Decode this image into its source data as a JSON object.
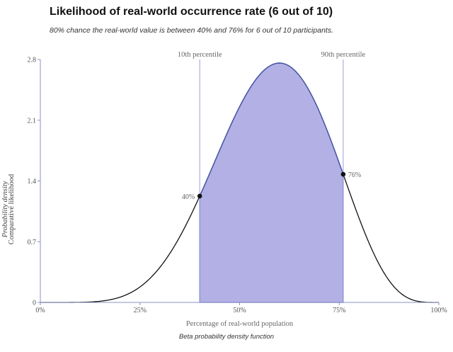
{
  "header": {
    "title": "Likelihood of real-world occurrence rate (6 out of 10)",
    "subtitle": "80% chance the real-world value is between 40% and 76% for 6 out of 10 participants."
  },
  "caption": "Beta probability density function",
  "chart_data": {
    "type": "area",
    "distribution": {
      "family": "beta",
      "alpha": 7,
      "beta": 5
    },
    "title": "Likelihood of real-world occurrence rate (6 out of 10)",
    "xlabel": "Percentage of real-world population",
    "ylabel_lines": [
      "Probability density",
      "Comparative likelihood"
    ],
    "xlim": [
      0,
      1
    ],
    "ylim": [
      0,
      2.8
    ],
    "x_ticks": [
      {
        "value": 0,
        "label": "0%"
      },
      {
        "value": 0.25,
        "label": "25%"
      },
      {
        "value": 0.5,
        "label": "50%"
      },
      {
        "value": 0.75,
        "label": "75%"
      },
      {
        "value": 1,
        "label": "100%"
      }
    ],
    "y_ticks": [
      {
        "value": 0,
        "label": "0"
      },
      {
        "value": 0.7,
        "label": "0.7"
      },
      {
        "value": 1.4,
        "label": "1.4"
      },
      {
        "value": 2.1,
        "label": "2.1"
      },
      {
        "value": 2.8,
        "label": "2.8"
      }
    ],
    "percentiles": [
      {
        "name": "10th percentile",
        "x": 0.4,
        "label": "40%"
      },
      {
        "name": "90th percentile",
        "x": 0.76,
        "label": "76%"
      }
    ],
    "shaded_interval": [
      0.4,
      0.76
    ],
    "colors": {
      "fill": "#b3b0e6",
      "shaded_edge": "#4a5bb0",
      "curve": "#111111",
      "percentile_line": "#9aa0d8",
      "axis": "#8a90c8",
      "point": "#111111"
    },
    "grid": false
  }
}
